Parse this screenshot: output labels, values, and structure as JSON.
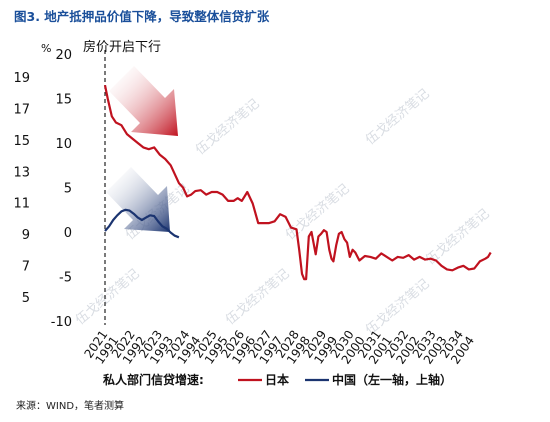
{
  "figure_title": "图3. 地产抵押品价值下降，导致整体信贷扩张",
  "source": "来源：WIND，笔者测算",
  "watermark": "伍戈经济笔记",
  "chart_data": {
    "type": "line",
    "annotation": "房价开启下行",
    "y_unit_label": "%",
    "left_axis": {
      "ticks": [
        19,
        17,
        15,
        13,
        11,
        9,
        7,
        5
      ],
      "ylim": [
        5,
        20
      ]
    },
    "right_axis": {
      "ticks": [
        20,
        15,
        10,
        5,
        0,
        -5,
        -10
      ],
      "ylim": [
        -10,
        20
      ]
    },
    "x_ticks_china": [
      "2021",
      "2022",
      "2023",
      "2024",
      "2025",
      "2026",
      "2027",
      "2028",
      "2029",
      "2030",
      "2031",
      "2032",
      "2033",
      "2034"
    ],
    "x_ticks_japan": [
      "1991",
      "1992",
      "1993",
      "1994",
      "1995",
      "1996",
      "1997",
      "1998",
      "1999",
      "2000",
      "2001",
      "2002",
      "2003",
      "2004"
    ],
    "legend_title": "私人部门信贷增速:",
    "series": [
      {
        "name": "日本",
        "axis": "right",
        "color": "#c0121f",
        "x": [
          1991.0,
          1991.1,
          1991.25,
          1991.4,
          1991.6,
          1991.8,
          1992.0,
          1992.2,
          1992.4,
          1992.6,
          1992.8,
          1993.0,
          1993.2,
          1993.4,
          1993.55,
          1993.7,
          1993.85,
          1994.0,
          1994.15,
          1994.3,
          1994.5,
          1994.7,
          1994.9,
          1995.1,
          1995.3,
          1995.5,
          1995.7,
          1995.85,
          1996.0,
          1996.2,
          1996.4,
          1996.6,
          1996.8,
          1997.0,
          1997.2,
          1997.4,
          1997.6,
          1997.8,
          1998.0,
          1998.1,
          1998.2,
          1998.28,
          1998.35,
          1998.45,
          1998.55,
          1998.62,
          1998.7,
          1998.8,
          1998.9,
          1999.0,
          1999.1,
          1999.2,
          1999.28,
          1999.35,
          1999.45,
          1999.55,
          1999.65,
          1999.75,
          1999.85,
          1999.95,
          2000.05,
          2000.15,
          2000.3,
          2000.5,
          2000.7,
          2000.9,
          2001.1,
          2001.3,
          2001.5,
          2001.7,
          2001.9,
          2002.1,
          2002.3,
          2002.5,
          2002.7,
          2002.9,
          2003.1,
          2003.3,
          2003.5,
          2003.7,
          2003.9,
          2004.1,
          2004.3,
          2004.5,
          2004.7,
          2004.9,
          2005.0,
          2005.1
        ],
        "values": [
          16.5,
          15.0,
          13.0,
          12.3,
          12.0,
          11.0,
          10.5,
          10.0,
          9.5,
          9.3,
          9.5,
          8.7,
          8.2,
          7.5,
          6.5,
          5.5,
          5.0,
          4.0,
          4.2,
          4.6,
          4.7,
          4.2,
          4.5,
          4.5,
          4.2,
          3.5,
          3.5,
          3.8,
          3.5,
          4.5,
          3.2,
          1.0,
          1.0,
          1.0,
          1.2,
          2.0,
          1.7,
          0.5,
          0.3,
          -2.0,
          -4.7,
          -5.3,
          -5.3,
          -0.5,
          0.0,
          -1.2,
          -2.5,
          -0.5,
          -0.2,
          0.2,
          0.0,
          -2.0,
          -3.0,
          -3.3,
          -1.5,
          -0.2,
          0.0,
          -0.8,
          -1.2,
          -2.8,
          -2.0,
          -2.3,
          -3.2,
          -2.7,
          -2.8,
          -3.0,
          -2.4,
          -2.8,
          -3.2,
          -2.8,
          -2.9,
          -2.6,
          -3.1,
          -2.8,
          -3.1,
          -3.0,
          -3.2,
          -3.8,
          -4.2,
          -4.3,
          -4.0,
          -3.8,
          -4.2,
          -4.1,
          -3.3,
          -3.0,
          -2.8,
          -2.3
        ]
      },
      {
        "name": "中国（左一轴，上轴）",
        "axis": "left",
        "color": "#1b3470",
        "x": [
          2021.0,
          2021.15,
          2021.3,
          2021.45,
          2021.6,
          2021.75,
          2021.9,
          2022.05,
          2022.2,
          2022.35,
          2022.5,
          2022.65,
          2022.8,
          2022.95,
          2023.1,
          2023.25,
          2023.4,
          2023.55,
          2023.7
        ],
        "values": [
          9.2,
          9.5,
          9.9,
          10.2,
          10.45,
          10.55,
          10.5,
          10.3,
          10.05,
          9.9,
          10.05,
          10.2,
          10.15,
          9.8,
          9.5,
          9.35,
          9.1,
          8.9,
          8.8
        ]
      }
    ]
  }
}
